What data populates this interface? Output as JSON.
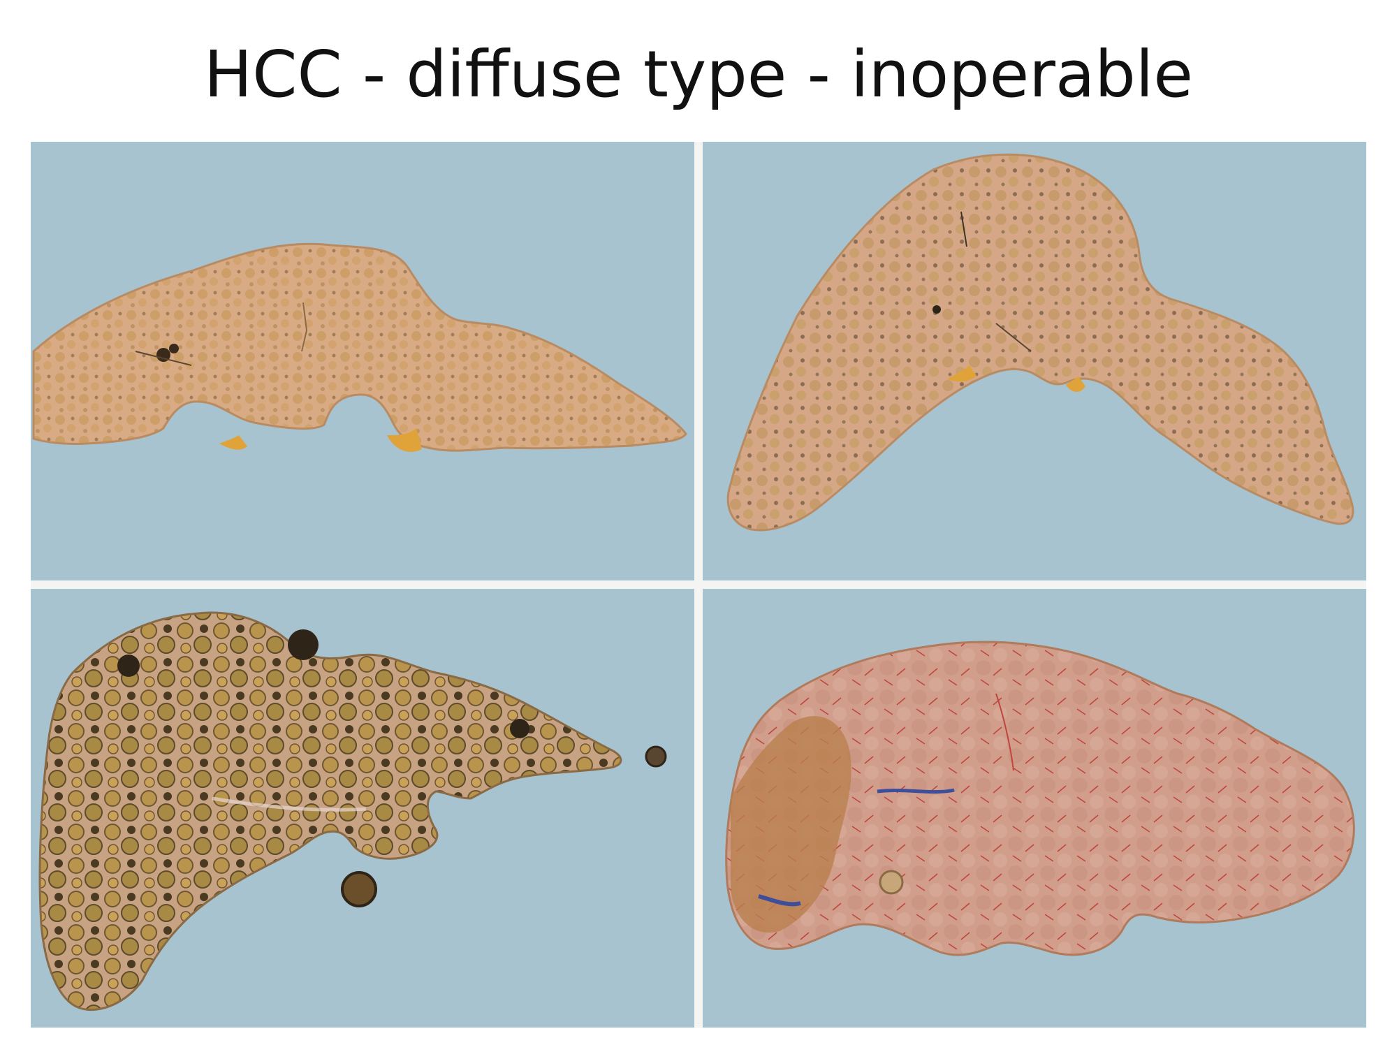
{
  "title": "HCC - diffuse type - inoperable",
  "colors": {
    "background_blue": "#a7c3cf",
    "tissue_tan": "#d6a982",
    "tissue_pink": "#cf9b86",
    "nodule_yellow": "#c8a052",
    "nodule_dark": "#4a3a22",
    "bile_orange": "#e0a33a",
    "stain_blue": "#3d4f9a",
    "vessel_red": "#c0453a"
  },
  "panels": [
    {
      "id": "liver-section-top-left"
    },
    {
      "id": "liver-section-top-right"
    },
    {
      "id": "liver-section-bottom-left"
    },
    {
      "id": "liver-section-bottom-right"
    }
  ]
}
